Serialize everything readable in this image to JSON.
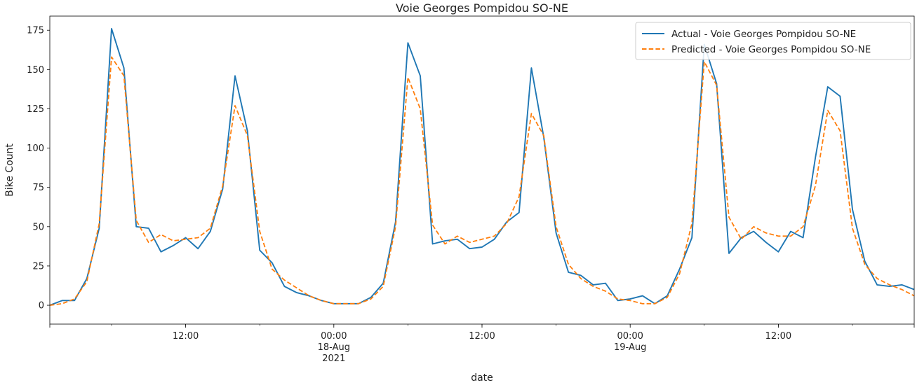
{
  "chart_data": {
    "type": "line",
    "title": "Voie Georges Pompidou SO-NE",
    "xlabel": "date",
    "ylabel": "Bike Count",
    "ylim": [
      -12,
      184
    ],
    "y_ticks": [
      0,
      25,
      50,
      75,
      100,
      125,
      150,
      175
    ],
    "x_range": [
      "2021-08-17T01:00",
      "2021-08-19T23:00"
    ],
    "x_ticks": [
      {
        "x": "2021-08-17T12:00",
        "lines": [
          "12:00"
        ]
      },
      {
        "x": "2021-08-18T00:00",
        "lines": [
          "00:00",
          "18-Aug",
          "2021"
        ]
      },
      {
        "x": "2021-08-18T12:00",
        "lines": [
          "12:00"
        ]
      },
      {
        "x": "2021-08-19T00:00",
        "lines": [
          "00:00",
          "19-Aug"
        ]
      },
      {
        "x": "2021-08-19T12:00",
        "lines": [
          "12:00"
        ]
      }
    ],
    "x": [
      "2021-08-17T01:00",
      "2021-08-17T02:00",
      "2021-08-17T03:00",
      "2021-08-17T04:00",
      "2021-08-17T05:00",
      "2021-08-17T06:00",
      "2021-08-17T07:00",
      "2021-08-17T08:00",
      "2021-08-17T09:00",
      "2021-08-17T10:00",
      "2021-08-17T11:00",
      "2021-08-17T12:00",
      "2021-08-17T13:00",
      "2021-08-17T14:00",
      "2021-08-17T15:00",
      "2021-08-17T16:00",
      "2021-08-17T17:00",
      "2021-08-17T18:00",
      "2021-08-17T19:00",
      "2021-08-17T20:00",
      "2021-08-17T21:00",
      "2021-08-17T22:00",
      "2021-08-17T23:00",
      "2021-08-18T00:00",
      "2021-08-18T01:00",
      "2021-08-18T02:00",
      "2021-08-18T03:00",
      "2021-08-18T04:00",
      "2021-08-18T05:00",
      "2021-08-18T06:00",
      "2021-08-18T07:00",
      "2021-08-18T08:00",
      "2021-08-18T09:00",
      "2021-08-18T10:00",
      "2021-08-18T11:00",
      "2021-08-18T12:00",
      "2021-08-18T13:00",
      "2021-08-18T14:00",
      "2021-08-18T15:00",
      "2021-08-18T16:00",
      "2021-08-18T17:00",
      "2021-08-18T18:00",
      "2021-08-18T19:00",
      "2021-08-18T20:00",
      "2021-08-18T21:00",
      "2021-08-18T22:00",
      "2021-08-18T23:00",
      "2021-08-19T00:00",
      "2021-08-19T01:00",
      "2021-08-19T02:00",
      "2021-08-19T03:00",
      "2021-08-19T04:00",
      "2021-08-19T05:00",
      "2021-08-19T06:00",
      "2021-08-19T07:00",
      "2021-08-19T08:00",
      "2021-08-19T09:00",
      "2021-08-19T10:00",
      "2021-08-19T11:00",
      "2021-08-19T12:00",
      "2021-08-19T13:00",
      "2021-08-19T14:00",
      "2021-08-19T15:00",
      "2021-08-19T16:00",
      "2021-08-19T17:00",
      "2021-08-19T18:00",
      "2021-08-19T19:00",
      "2021-08-19T20:00",
      "2021-08-19T21:00",
      "2021-08-19T22:00",
      "2021-08-19T23:00"
    ],
    "series": [
      {
        "name": "Actual - Voie Georges Pompidou SO-NE",
        "color": "#1f77b4",
        "style": "solid",
        "values": [
          0,
          3,
          3,
          17,
          49,
          176,
          151,
          50,
          49,
          34,
          38,
          43,
          36,
          47,
          74,
          146,
          111,
          35,
          27,
          12,
          8,
          6,
          3,
          1,
          1,
          1,
          5,
          14,
          53,
          167,
          146,
          39,
          41,
          42,
          36,
          37,
          42,
          53,
          59,
          151,
          107,
          46,
          21,
          19,
          13,
          14,
          3,
          4,
          6,
          1,
          6,
          23,
          43,
          166,
          141,
          33,
          43,
          47,
          40,
          34,
          47,
          43,
          94,
          139,
          133,
          61,
          28,
          13,
          12,
          13,
          10
        ]
      },
      {
        "name": "Predicted - Voie Georges Pompidou SO-NE",
        "color": "#ff7f0e",
        "style": "dashed",
        "values": [
          0,
          1,
          4,
          15,
          52,
          158,
          146,
          54,
          40,
          45,
          41,
          42,
          43,
          49,
          76,
          127,
          108,
          47,
          23,
          16,
          11,
          6,
          3,
          1,
          1,
          1,
          4,
          12,
          50,
          145,
          125,
          51,
          39,
          44,
          40,
          42,
          44,
          52,
          69,
          122,
          108,
          50,
          26,
          17,
          12,
          9,
          4,
          3,
          1,
          1,
          5,
          20,
          52,
          155,
          140,
          56,
          42,
          50,
          46,
          44,
          44,
          50,
          76,
          124,
          111,
          49,
          26,
          17,
          13,
          10,
          6
        ]
      }
    ],
    "legend": {
      "placement": "top-right"
    },
    "grid": false
  }
}
